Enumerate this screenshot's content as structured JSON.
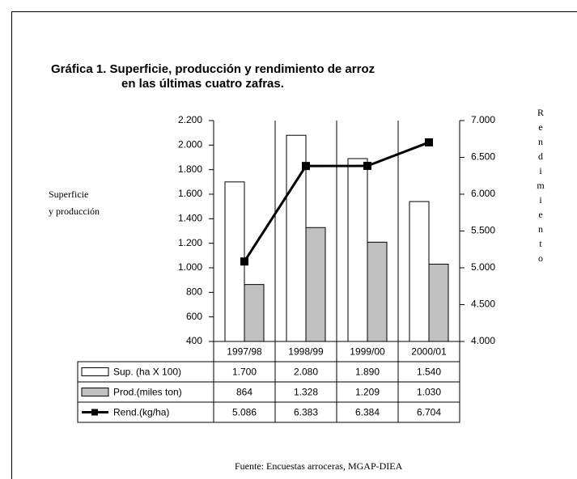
{
  "chart_data": {
    "type": "bar_line",
    "title": [
      "Gráfica 1. Superficie, producción y rendimiento de arroz",
      "en las últimas cuatro zafras."
    ],
    "y_label": [
      "Superficie",
      "y producción"
    ],
    "y2_label": "Rendimiento",
    "categories": [
      "1997/98",
      "1998/99",
      "1999/00",
      "2000/01"
    ],
    "series": [
      {
        "name": "Sup. (ha X 100)",
        "type": "bar",
        "color": "#ffffff",
        "values": [
          1700,
          2080,
          1890,
          1540
        ],
        "value_labels": [
          "1.700",
          "2.080",
          "1.890",
          "1.540"
        ]
      },
      {
        "name": "Prod.(miles ton)",
        "type": "bar",
        "color": "#c0c0c0",
        "values": [
          864,
          1328,
          1209,
          1030
        ],
        "value_labels": [
          "864",
          "1.328",
          "1.209",
          "1.030"
        ]
      },
      {
        "name": "Rend.(kg/ha)",
        "type": "line",
        "axis": "y2",
        "color": "#000000",
        "values": [
          5086,
          6383,
          6384,
          6704
        ],
        "value_labels": [
          "5.086",
          "6.383",
          "6.384",
          "6.704"
        ]
      }
    ],
    "ylim": [
      400,
      2200
    ],
    "yticks": [
      400,
      600,
      800,
      {
        "value": 1000,
        "label": "1.000"
      },
      {
        "value": 1200,
        "label": "1.200"
      },
      {
        "value": 1400,
        "label": "1.400"
      },
      {
        "value": 1600,
        "label": "1.600"
      },
      {
        "value": 1800,
        "label": "1.800"
      },
      {
        "value": 2000,
        "label": "2.000"
      },
      {
        "value": 2200,
        "label": "2.200"
      }
    ],
    "y2lim": [
      4000,
      7000
    ],
    "y2ticks": [
      {
        "value": 4000,
        "label": "4.000"
      },
      {
        "value": 4500,
        "label": "4.500"
      },
      {
        "value": 5000,
        "label": "5.000"
      },
      {
        "value": 5500,
        "label": "5.500"
      },
      {
        "value": 6000,
        "label": "6.000"
      },
      {
        "value": 6500,
        "label": "6.500"
      },
      {
        "value": 7000,
        "label": "7.000"
      }
    ],
    "source": "Fuente: Encuestas arroceras, MGAP-DIEA"
  }
}
